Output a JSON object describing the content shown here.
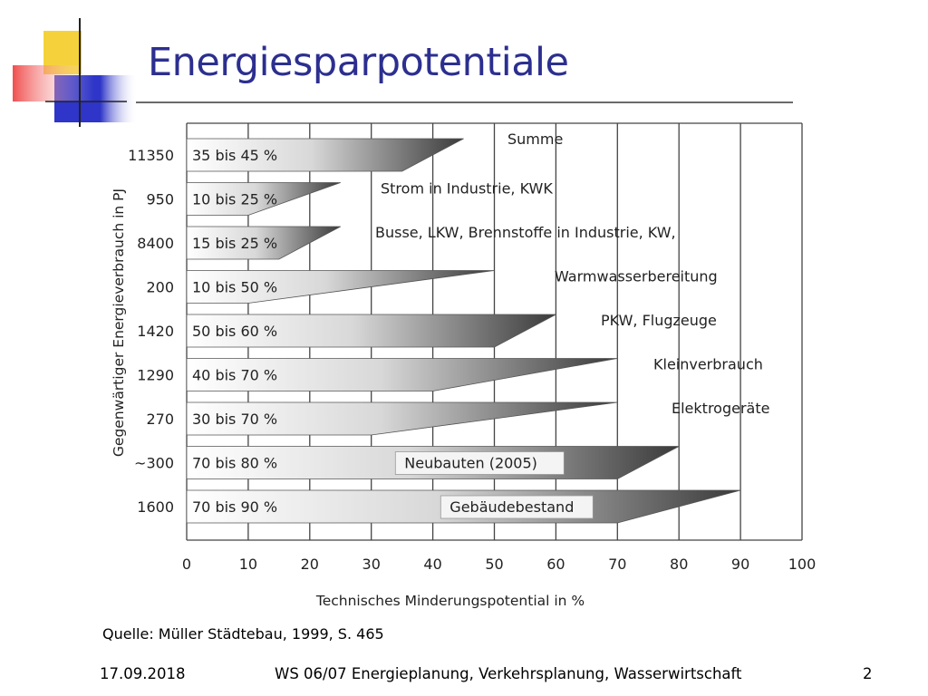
{
  "slide": {
    "title": "Energiesparpotentiale",
    "source": "Quelle: Müller Städtebau, 1999, S. 465",
    "footer": {
      "date": "17.09.2018",
      "course": "WS 06/07 Energieplanung, Verkehrsplanung, Wasserwirtschaft",
      "page": "2"
    },
    "colors": {
      "title": "#2c2f8f",
      "logo_yellow": "#f5d23c",
      "logo_red": "#ef3b3b",
      "logo_blue": "#2e35c8"
    }
  },
  "chart_data": {
    "type": "bar",
    "xlabel": "Technisches Minderungspotential in %",
    "ylabel": "Gegenwärtiger Energieverbrauch in PJ",
    "xlim": [
      0,
      100
    ],
    "xticks": [
      "0",
      "10",
      "20",
      "30",
      "40",
      "50",
      "60",
      "70",
      "80",
      "90",
      "100"
    ],
    "grid": true,
    "rows": [
      {
        "consumption": "11350",
        "range_label": "35 bis 45 %",
        "min": 35,
        "max": 45,
        "category": "Summe",
        "boxed": false
      },
      {
        "consumption": "950",
        "range_label": "10 bis 25 %",
        "min": 10,
        "max": 25,
        "category": "Strom in Industrie, KWK",
        "boxed": false
      },
      {
        "consumption": "8400",
        "range_label": "15 bis 25 %",
        "min": 15,
        "max": 25,
        "category": "Busse,  LKW,  Brennstoffe  in  Industrie,  KW,",
        "boxed": false
      },
      {
        "consumption": "200",
        "range_label": "10 bis 50 %",
        "min": 10,
        "max": 50,
        "category": "Warmwasserbereitung",
        "boxed": false
      },
      {
        "consumption": "1420",
        "range_label": "50 bis 60 %",
        "min": 50,
        "max": 60,
        "category": "PKW, Flugzeuge",
        "boxed": false
      },
      {
        "consumption": "1290",
        "range_label": "40 bis 70 %",
        "min": 40,
        "max": 70,
        "category": "Kleinverbrauch",
        "boxed": false
      },
      {
        "consumption": "270",
        "range_label": "30 bis 70 %",
        "min": 30,
        "max": 70,
        "category": "Elektrogeräte",
        "boxed": false
      },
      {
        "consumption": "~300",
        "range_label": "70 bis 80 %",
        "min": 70,
        "max": 80,
        "category": "Neubauten (2005)",
        "boxed": true
      },
      {
        "consumption": "1600",
        "range_label": "70 bis 90 %",
        "min": 70,
        "max": 90,
        "category": "Gebäudebestand",
        "boxed": true
      }
    ]
  }
}
